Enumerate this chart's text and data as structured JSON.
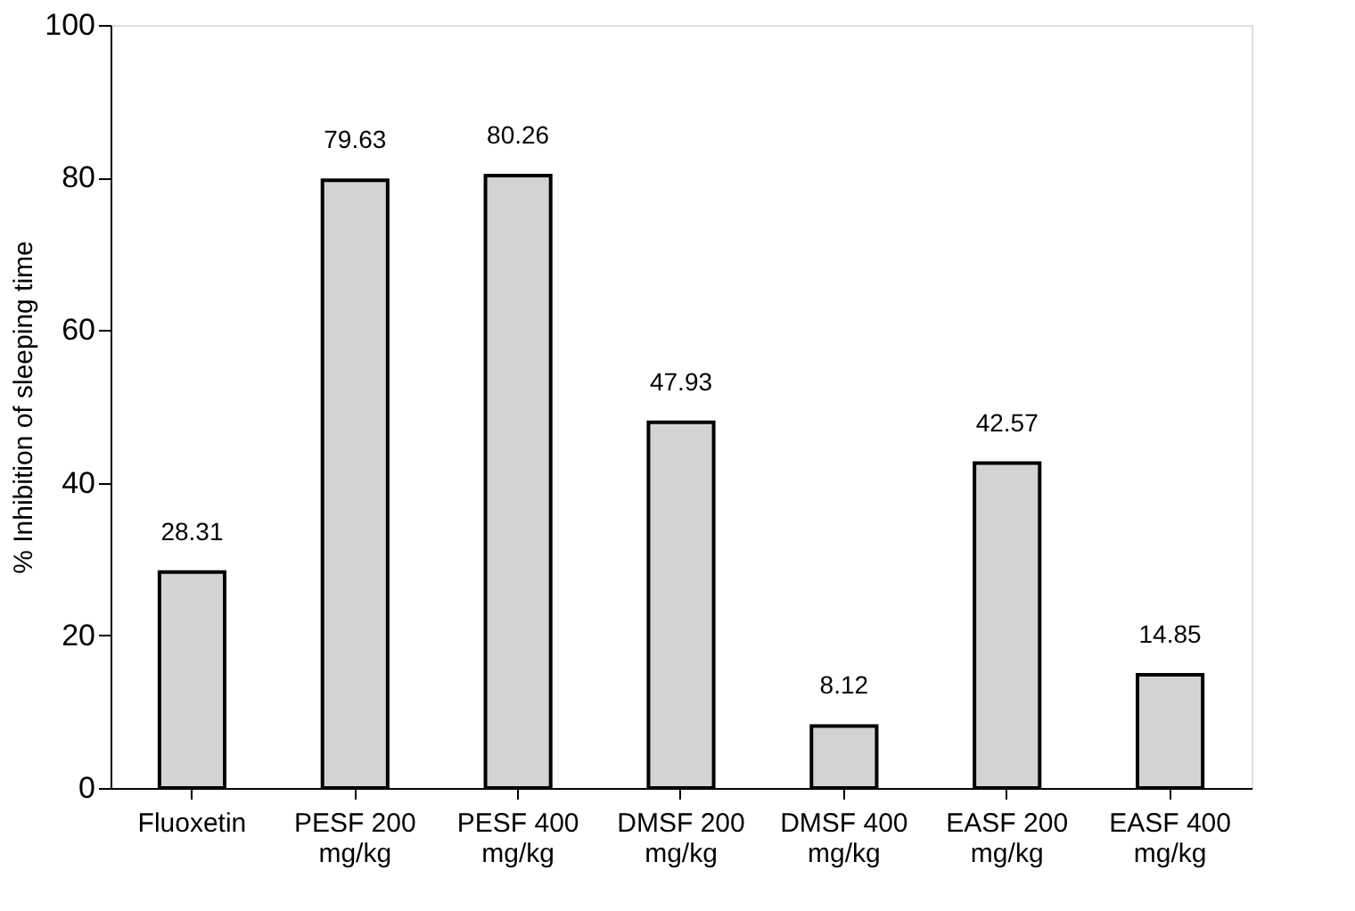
{
  "chart_data": {
    "type": "bar",
    "ylabel": "% Inhibition of sleeping time",
    "categories": [
      "Fluoxetin",
      "PESF 200 mg/kg",
      "PESF 400 mg/kg",
      "DMSF 200 mg/kg",
      "DMSF 400 mg/kg",
      "EASF 200 mg/kg",
      "EASF 400 mg/kg"
    ],
    "values": [
      28.31,
      79.63,
      80.26,
      47.93,
      8.12,
      42.57,
      14.85
    ],
    "color": "#d3d3d3",
    "data_labels": true,
    "grid": false,
    "ylim": [
      0,
      100
    ],
    "yticks": [
      0,
      20,
      40,
      60,
      80,
      100
    ]
  }
}
